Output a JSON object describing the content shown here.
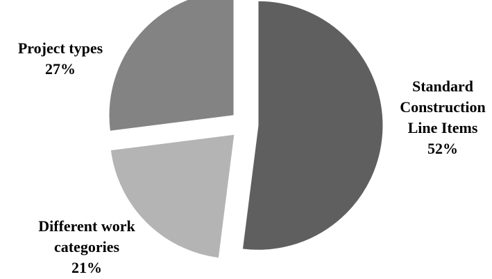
{
  "chart_data": {
    "type": "pie",
    "title": "",
    "slices": [
      {
        "category": "Standard Construction Line Items",
        "label_lines": [
          "Standard",
          "Construction",
          "Line Items"
        ],
        "percent_label": "52%",
        "value": 52,
        "color": "#5f5f5f"
      },
      {
        "category": "Different work categories",
        "label_lines": [
          "Different work",
          "categories"
        ],
        "percent_label": "21%",
        "value": 21,
        "color": "#b4b4b4"
      },
      {
        "category": "Project types",
        "label_lines": [
          "Project types"
        ],
        "percent_label": "27%",
        "value": 27,
        "color": "#838383"
      }
    ],
    "exploded": true,
    "legend": "none"
  }
}
